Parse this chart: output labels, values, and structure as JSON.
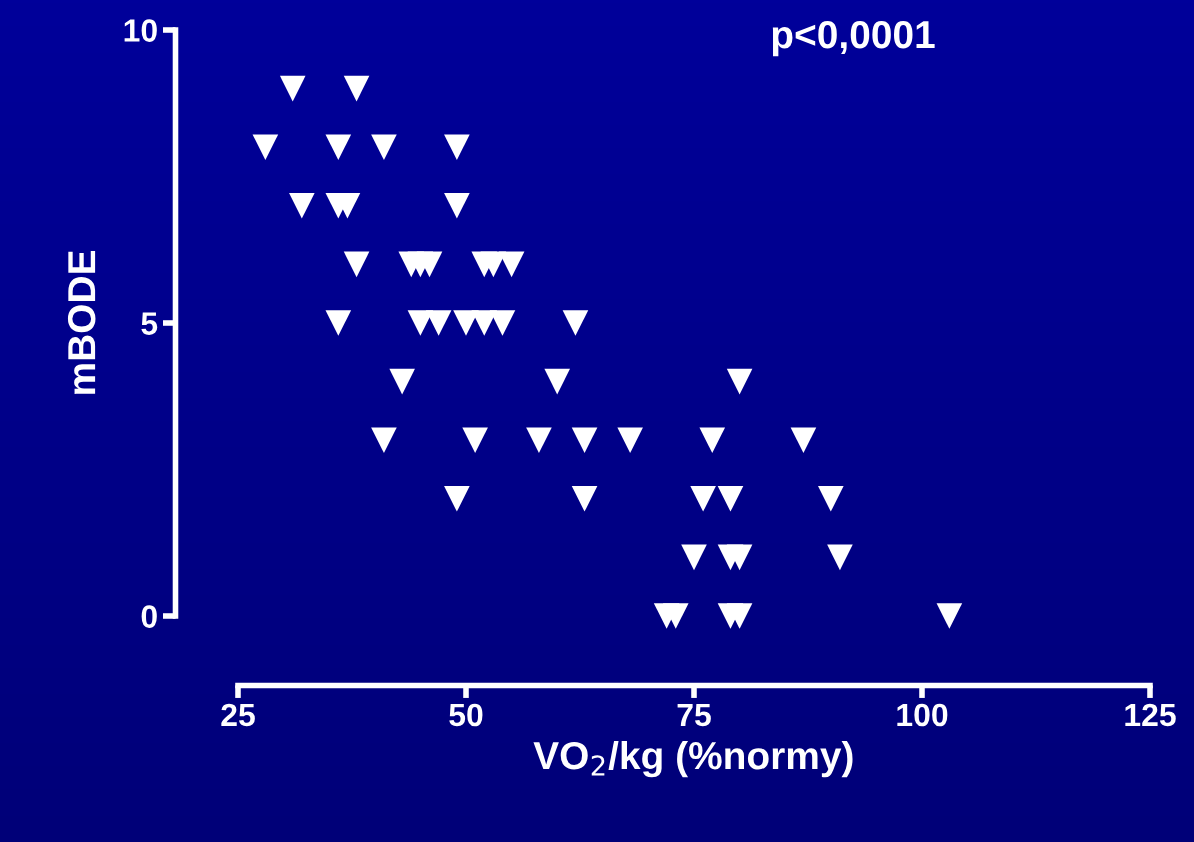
{
  "chart_data": {
    "type": "scatter",
    "xlabel": "VO$_{2}$/kg (%normy)",
    "ylabel": "mBODE",
    "annotations": [
      "p<0,0001"
    ],
    "xlim": [
      25,
      125
    ],
    "xticks": [
      25,
      50,
      75,
      100,
      125
    ],
    "ylim": [
      0,
      10
    ],
    "yticks": [
      0,
      5,
      10
    ],
    "grid": false,
    "marker": "triangle",
    "series": [
      {
        "color": "#ffffff",
        "x": [
          31,
          38,
          28,
          36,
          41,
          49,
          32,
          36,
          37,
          49,
          38,
          44,
          45,
          46,
          52,
          53,
          55,
          36,
          45,
          47,
          50,
          52,
          54,
          62,
          43,
          60,
          80,
          41,
          51,
          58,
          63,
          68,
          77,
          87,
          49,
          63,
          76,
          79,
          90,
          75,
          79,
          80,
          91,
          72,
          73,
          79,
          80,
          103
        ],
        "values": [
          9,
          9,
          8,
          8,
          8,
          8,
          7,
          7,
          7,
          7,
          6,
          6,
          6,
          6,
          6,
          6,
          6,
          5,
          5,
          5,
          5,
          5,
          5,
          5,
          4,
          4,
          4,
          3,
          3,
          3,
          3,
          3,
          3,
          3,
          2,
          2,
          2,
          2,
          2,
          1,
          1,
          1,
          1,
          0,
          0,
          0,
          0,
          0
        ]
      }
    ]
  }
}
